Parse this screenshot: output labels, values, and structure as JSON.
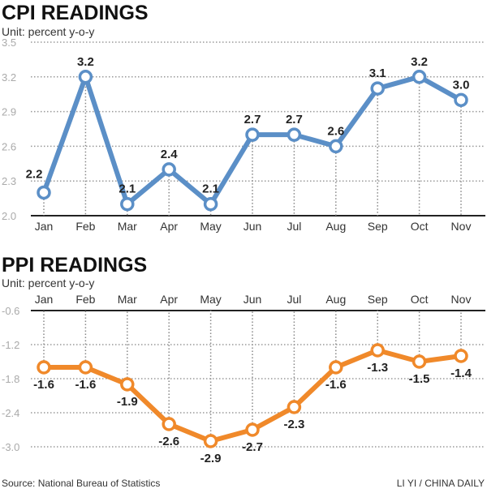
{
  "chart_data": [
    {
      "type": "line",
      "title": "CPI READINGS",
      "subtitle": "Unit: percent y-o-y",
      "categories": [
        "Jan",
        "Feb",
        "Mar",
        "Apr",
        "May",
        "Jun",
        "Jul",
        "Aug",
        "Sep",
        "Oct",
        "Nov"
      ],
      "values": [
        2.2,
        3.2,
        2.1,
        2.4,
        2.1,
        2.7,
        2.7,
        2.6,
        3.1,
        3.2,
        3.0
      ],
      "labels": [
        "2.2",
        "3.2",
        "2.1",
        "2.4",
        "2.1",
        "2.7",
        "2.7",
        "2.6",
        "3.1",
        "3.2",
        "3.0"
      ],
      "yticks": [
        "3.5",
        "3.2",
        "2.9",
        "2.6",
        "2.3",
        "2.0"
      ],
      "ylim": [
        2.0,
        3.5
      ],
      "grid": true,
      "color": "#5b8fc7"
    },
    {
      "type": "line",
      "title": "PPI READINGS",
      "subtitle": "Unit: percent y-o-y",
      "categories": [
        "Jan",
        "Feb",
        "Mar",
        "Apr",
        "May",
        "Jun",
        "Jul",
        "Aug",
        "Sep",
        "Oct",
        "Nov"
      ],
      "values": [
        -1.6,
        -1.6,
        -1.9,
        -2.6,
        -2.9,
        -2.7,
        -2.3,
        -1.6,
        -1.3,
        -1.5,
        -1.4
      ],
      "labels": [
        "-1.6",
        "-1.6",
        "-1.9",
        "-2.6",
        "-2.9",
        "-2.7",
        "-2.3",
        "-1.6",
        "-1.3",
        "-1.5",
        "-1.4"
      ],
      "yticks": [
        "-0.6",
        "-1.2",
        "-1.8",
        "-2.4",
        "-3.0"
      ],
      "ylim": [
        -3.0,
        -0.6
      ],
      "grid": true,
      "color": "#f0892a"
    }
  ],
  "footer": {
    "source": "Source: National Bureau of Statistics",
    "credit": "LI YI / CHINA DAILY"
  }
}
